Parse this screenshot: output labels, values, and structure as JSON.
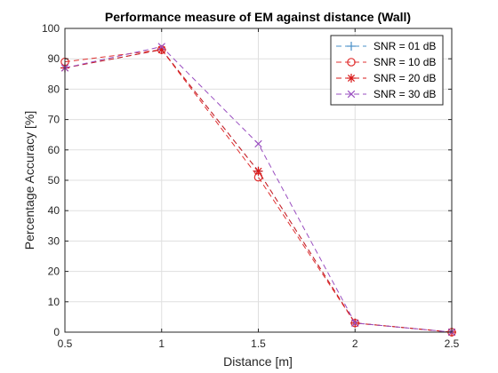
{
  "chart_data": {
    "type": "line",
    "title": "Performance measure of EM against distance (Wall)",
    "xlabel": "Distance [m]",
    "ylabel": "Percentage Accuracy [%]",
    "xlim": [
      0.5,
      2.5
    ],
    "ylim": [
      0,
      100
    ],
    "xticks": [
      "0.5",
      "1",
      "1.5",
      "2",
      "2.5"
    ],
    "yticks": [
      "0",
      "10",
      "20",
      "30",
      "40",
      "50",
      "60",
      "70",
      "80",
      "90",
      "100"
    ],
    "grid": true,
    "legend_position": "top-right",
    "x": [
      0.5,
      1,
      1.5,
      2,
      2.5
    ],
    "series": [
      {
        "name": "SNR = 01 dB",
        "values": [
          87,
          93,
          53,
          3,
          0
        ],
        "color": "#4a90c8",
        "marker": "plus"
      },
      {
        "name": "SNR = 10 dB",
        "values": [
          89,
          93,
          51,
          3,
          0
        ],
        "color": "#e03030",
        "marker": "circle"
      },
      {
        "name": "SNR = 20 dB",
        "values": [
          87,
          93,
          53,
          3,
          0
        ],
        "color": "#d81818",
        "marker": "star"
      },
      {
        "name": "SNR = 30 dB",
        "values": [
          87,
          94,
          62,
          3,
          0
        ],
        "color": "#9a4fc0",
        "marker": "x"
      }
    ]
  }
}
